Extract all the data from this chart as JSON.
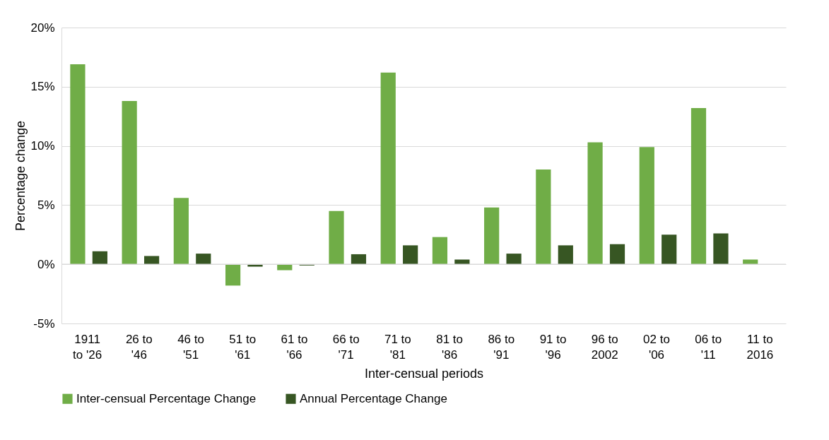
{
  "chart_data": {
    "type": "bar",
    "xlabel": "Inter-censual periods",
    "ylabel": "Percentage change",
    "categories": [
      "1911\nto '26",
      "26 to\n'46",
      "46 to\n'51",
      "51 to\n'61",
      "61 to\n'66",
      "66 to\n'71",
      "71 to\n'81",
      "81 to\n'86",
      "86 to\n'91",
      "91 to\n'96",
      "96 to\n2002",
      "02 to\n'06",
      "06 to\n'11",
      "11 to\n2016"
    ],
    "series": [
      {
        "name": "Inter-censual Percentage Change",
        "color": "#70ad47",
        "values": [
          16.9,
          13.8,
          5.6,
          -1.8,
          -0.5,
          4.5,
          16.2,
          2.3,
          4.8,
          8.0,
          10.3,
          9.9,
          13.2,
          0.4
        ]
      },
      {
        "name": "Annual Percentage Change",
        "color": "#375623",
        "values": [
          1.1,
          0.7,
          0.9,
          -0.2,
          -0.1,
          0.85,
          1.6,
          0.4,
          0.9,
          1.6,
          1.7,
          2.5,
          2.6,
          null
        ]
      }
    ],
    "ylim": [
      -5,
      20
    ],
    "yticks": [
      {
        "value": -5,
        "label": "-5%"
      },
      {
        "value": 0,
        "label": "0%"
      },
      {
        "value": 5,
        "label": "5%"
      },
      {
        "value": 10,
        "label": "10%"
      },
      {
        "value": 15,
        "label": "15%"
      },
      {
        "value": 20,
        "label": "20%"
      }
    ],
    "grid": "y",
    "legend": "bottom"
  }
}
